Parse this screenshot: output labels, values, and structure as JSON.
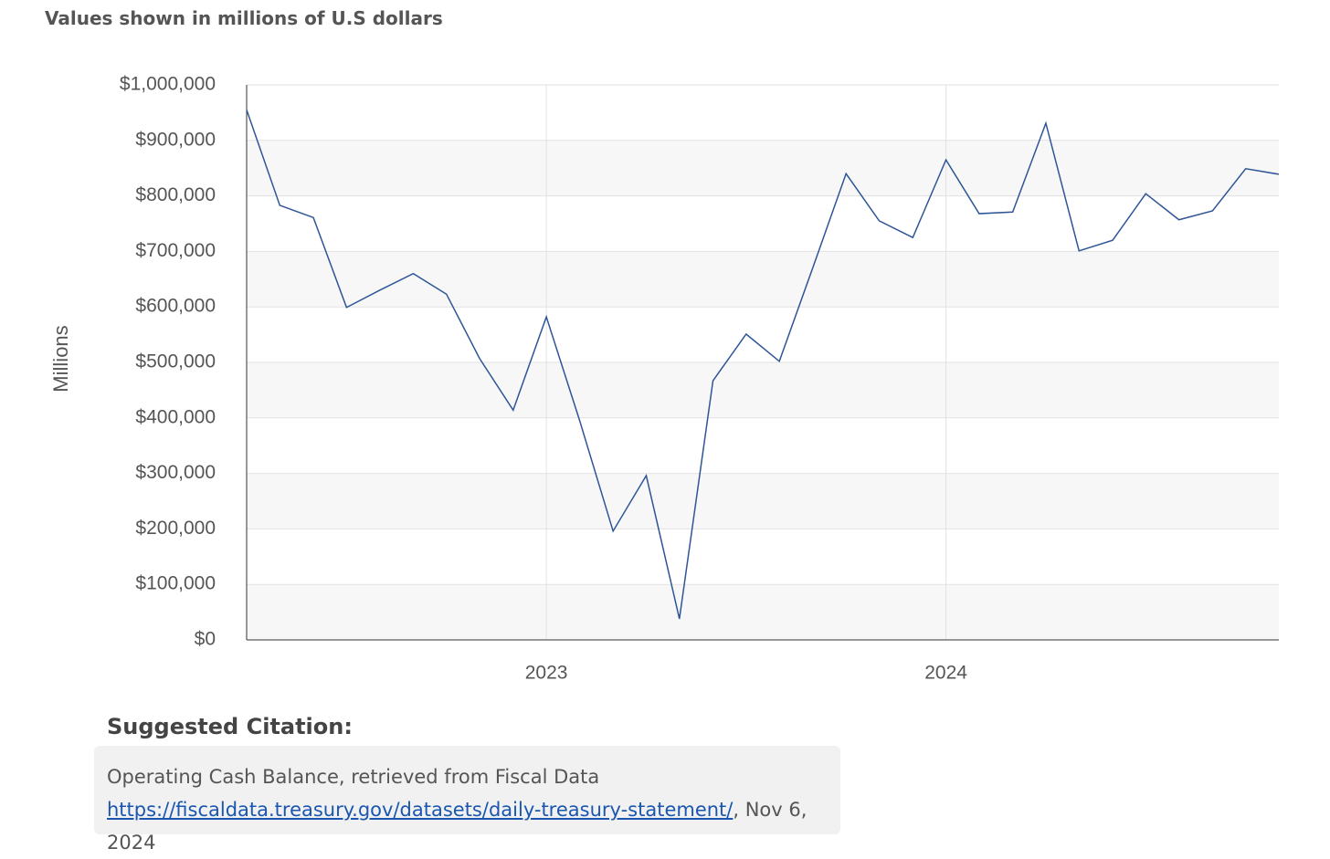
{
  "chart_data": {
    "type": "line",
    "subtitle": "Values shown in millions of U.S dollars",
    "y_label": "Millions",
    "x": [
      2022.25,
      2022.333,
      2022.417,
      2022.5,
      2022.583,
      2022.667,
      2022.75,
      2022.833,
      2022.917,
      2023,
      2023.083,
      2023.167,
      2023.25,
      2023.333,
      2023.417,
      2023.5,
      2023.583,
      2023.667,
      2023.75,
      2023.833,
      2023.917,
      2024,
      2024.083,
      2024.167,
      2024.25,
      2024.333,
      2024.417,
      2024.5,
      2024.583,
      2024.667,
      2024.75,
      2024.833
    ],
    "series": [
      {
        "color": "#2f5597",
        "values": [
          955000,
          783000,
          761000,
          599000,
          630000,
          660000,
          623000,
          507000,
          414000,
          582000,
          396000,
          196000,
          296000,
          38000,
          467000,
          551000,
          502000,
          671000,
          840000,
          755000,
          725000,
          865000,
          768000,
          771000,
          931000,
          701000,
          720000,
          804000,
          757000,
          773000,
          849000,
          839000
        ]
      }
    ],
    "xlim": [
      2022.25,
      2024.833
    ],
    "xticks": [
      2023,
      2024
    ],
    "ylim": [
      0,
      1000000
    ],
    "yticks": [
      {
        "value": 0,
        "label": "$0"
      },
      {
        "value": 100000,
        "label": "$100,000"
      },
      {
        "value": 200000,
        "label": "$200,000"
      },
      {
        "value": 300000,
        "label": "$300,000"
      },
      {
        "value": 400000,
        "label": "$400,000"
      },
      {
        "value": 500000,
        "label": "$500,000"
      },
      {
        "value": 600000,
        "label": "$600,000"
      },
      {
        "value": 700000,
        "label": "$700,000"
      },
      {
        "value": 800000,
        "label": "$800,000"
      },
      {
        "value": 900000,
        "label": "$900,000"
      },
      {
        "value": 1000000,
        "label": "$1,000,000"
      }
    ],
    "grid": true
  },
  "citation": {
    "heading": "Suggested Citation:",
    "text": "Operating Cash Balance, retrieved from Fiscal Data",
    "link": "https://fiscaldata.treasury.gov/datasets/daily-treasury-statement/",
    "date": ", Nov 6, 2024"
  }
}
